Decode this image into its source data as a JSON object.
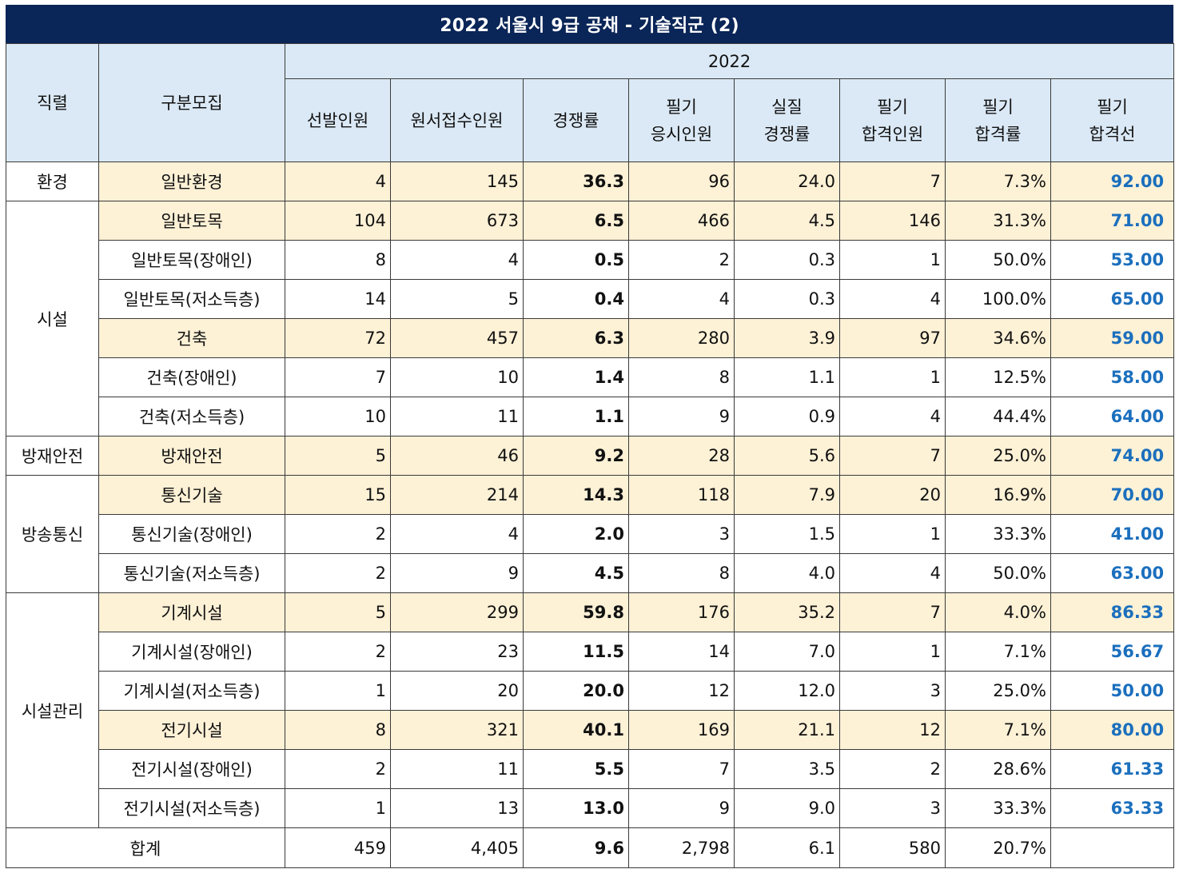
{
  "title": "2022 서울시 9급 공채 - 기술직군 (2)",
  "headers": {
    "job_series": "직렬",
    "category": "구분모집",
    "year": "2022",
    "selected": "선발인원",
    "applicants": "원서접수인원",
    "competition": "경쟁률",
    "written_takers_1": "필기",
    "written_takers_2": "응시인원",
    "actual_comp_1": "실질",
    "actual_comp_2": "경쟁률",
    "written_pass_1": "필기",
    "written_pass_2": "합격인원",
    "pass_rate_1": "필기",
    "pass_rate_2": "합격률",
    "cutoff_1": "필기",
    "cutoff_2": "합격선"
  },
  "groups": [
    "환경",
    "시설",
    "방재안전",
    "방송통신",
    "시설관리"
  ],
  "rows": [
    {
      "category": "일반환경",
      "selected": "4",
      "applicants": "145",
      "competition": "36.3",
      "takers": "96",
      "actual": "24.0",
      "passed": "7",
      "rate": "7.3%",
      "cutoff": "92.00"
    },
    {
      "category": "일반토목",
      "selected": "104",
      "applicants": "673",
      "competition": "6.5",
      "takers": "466",
      "actual": "4.5",
      "passed": "146",
      "rate": "31.3%",
      "cutoff": "71.00"
    },
    {
      "category": "일반토목(장애인)",
      "selected": "8",
      "applicants": "4",
      "competition": "0.5",
      "takers": "2",
      "actual": "0.3",
      "passed": "1",
      "rate": "50.0%",
      "cutoff": "53.00"
    },
    {
      "category": "일반토목(저소득층)",
      "selected": "14",
      "applicants": "5",
      "competition": "0.4",
      "takers": "4",
      "actual": "0.3",
      "passed": "4",
      "rate": "100.0%",
      "cutoff": "65.00"
    },
    {
      "category": "건축",
      "selected": "72",
      "applicants": "457",
      "competition": "6.3",
      "takers": "280",
      "actual": "3.9",
      "passed": "97",
      "rate": "34.6%",
      "cutoff": "59.00"
    },
    {
      "category": "건축(장애인)",
      "selected": "7",
      "applicants": "10",
      "competition": "1.4",
      "takers": "8",
      "actual": "1.1",
      "passed": "1",
      "rate": "12.5%",
      "cutoff": "58.00"
    },
    {
      "category": "건축(저소득층)",
      "selected": "10",
      "applicants": "11",
      "competition": "1.1",
      "takers": "9",
      "actual": "0.9",
      "passed": "4",
      "rate": "44.4%",
      "cutoff": "64.00"
    },
    {
      "category": "방재안전",
      "selected": "5",
      "applicants": "46",
      "competition": "9.2",
      "takers": "28",
      "actual": "5.6",
      "passed": "7",
      "rate": "25.0%",
      "cutoff": "74.00"
    },
    {
      "category": "통신기술",
      "selected": "15",
      "applicants": "214",
      "competition": "14.3",
      "takers": "118",
      "actual": "7.9",
      "passed": "20",
      "rate": "16.9%",
      "cutoff": "70.00"
    },
    {
      "category": "통신기술(장애인)",
      "selected": "2",
      "applicants": "4",
      "competition": "2.0",
      "takers": "3",
      "actual": "1.5",
      "passed": "1",
      "rate": "33.3%",
      "cutoff": "41.00"
    },
    {
      "category": "통신기술(저소득층)",
      "selected": "2",
      "applicants": "9",
      "competition": "4.5",
      "takers": "8",
      "actual": "4.0",
      "passed": "4",
      "rate": "50.0%",
      "cutoff": "63.00"
    },
    {
      "category": "기계시설",
      "selected": "5",
      "applicants": "299",
      "competition": "59.8",
      "takers": "176",
      "actual": "35.2",
      "passed": "7",
      "rate": "4.0%",
      "cutoff": "86.33"
    },
    {
      "category": "기계시설(장애인)",
      "selected": "2",
      "applicants": "23",
      "competition": "11.5",
      "takers": "14",
      "actual": "7.0",
      "passed": "1",
      "rate": "7.1%",
      "cutoff": "56.67"
    },
    {
      "category": "기계시설(저소득층)",
      "selected": "1",
      "applicants": "20",
      "competition": "20.0",
      "takers": "12",
      "actual": "12.0",
      "passed": "3",
      "rate": "25.0%",
      "cutoff": "50.00"
    },
    {
      "category": "전기시설",
      "selected": "8",
      "applicants": "321",
      "competition": "40.1",
      "takers": "169",
      "actual": "21.1",
      "passed": "12",
      "rate": "7.1%",
      "cutoff": "80.00"
    },
    {
      "category": "전기시설(장애인)",
      "selected": "2",
      "applicants": "11",
      "competition": "5.5",
      "takers": "7",
      "actual": "3.5",
      "passed": "2",
      "rate": "28.6%",
      "cutoff": "61.33"
    },
    {
      "category": "전기시설(저소득층)",
      "selected": "1",
      "applicants": "13",
      "competition": "13.0",
      "takers": "9",
      "actual": "9.0",
      "passed": "3",
      "rate": "33.3%",
      "cutoff": "63.33"
    }
  ],
  "total": {
    "label": "합계",
    "selected": "459",
    "applicants": "4,405",
    "competition": "9.6",
    "takers": "2,798",
    "actual": "6.1",
    "passed": "580",
    "rate": "20.7%",
    "cutoff": ""
  },
  "colors": {
    "title_bg": "#0a2557",
    "header_bg": "#dbe9f6",
    "highlight_bg": "#fdf1d6",
    "cutoff_text": "#1b6fbd"
  }
}
